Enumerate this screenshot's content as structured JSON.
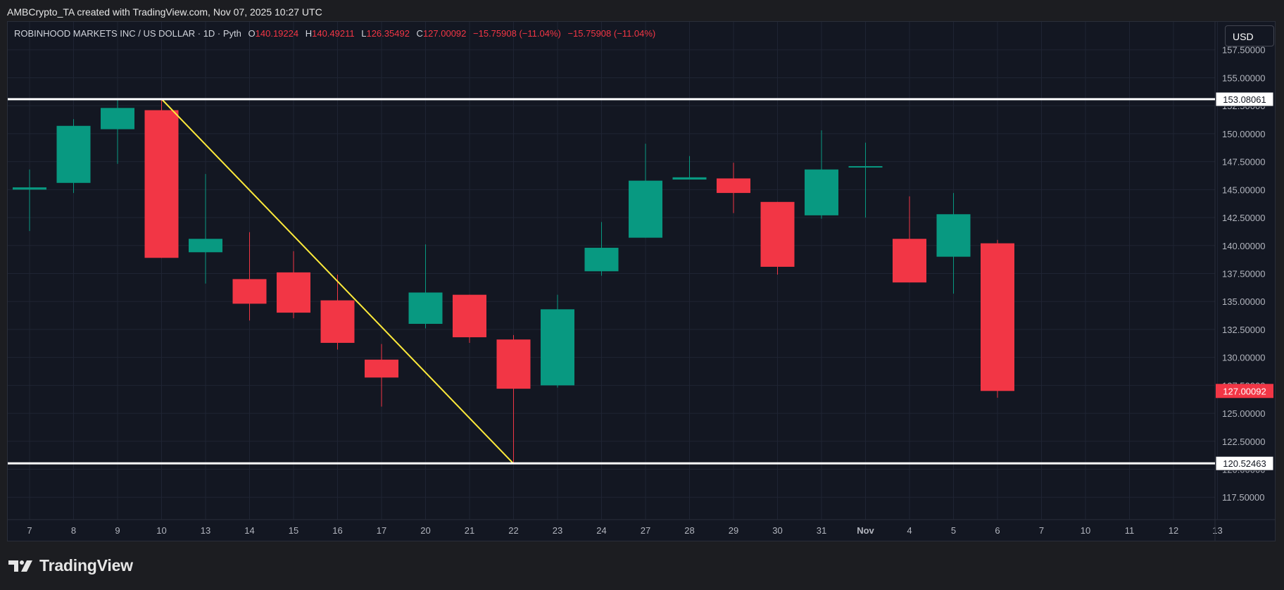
{
  "header": {
    "created_by": "AMBCrypto_TA created with TradingView.com, Nov 07, 2025 10:27 UTC"
  },
  "legend": {
    "symbol": "ROBINHOOD MARKETS INC / US DOLLAR · 1D · Pyth",
    "o_label": "O",
    "o_value": "140.19224",
    "h_label": "H",
    "h_value": "140.49211",
    "l_label": "L",
    "l_value": "126.35492",
    "c_label": "C",
    "c_value": "127.00092",
    "change": "−15.75908 (−11.04%)",
    "change2": "−15.75908 (−11.04%)"
  },
  "currency_button": "USD",
  "brand": {
    "name": "TradingView"
  },
  "colors": {
    "up": "#089981",
    "down": "#f23645",
    "trendline": "#ffeb3b",
    "level": "#ffffff",
    "bg": "#131722",
    "grid": "#1f2433"
  },
  "chart_data": {
    "type": "candlestick",
    "ylim": [
      115.5,
      160.0
    ],
    "y_ticks": [
      "157.50000",
      "155.00000",
      "152.50000",
      "150.00000",
      "147.50000",
      "145.00000",
      "142.50000",
      "140.00000",
      "137.50000",
      "135.00000",
      "132.50000",
      "130.00000",
      "127.50000",
      "125.00000",
      "122.50000",
      "120.00000",
      "117.50000"
    ],
    "x_labels": [
      "7",
      "8",
      "9",
      "10",
      "13",
      "14",
      "15",
      "16",
      "17",
      "20",
      "21",
      "22",
      "23",
      "24",
      "27",
      "28",
      "29",
      "30",
      "31",
      "Nov",
      "4",
      "5",
      "6",
      "7",
      "10",
      "11",
      "12",
      "13"
    ],
    "candles": [
      {
        "x": "7",
        "o": 145.0,
        "h": 146.8,
        "l": 141.3,
        "c": 145.2
      },
      {
        "x": "8",
        "o": 145.6,
        "h": 151.3,
        "l": 144.7,
        "c": 150.7
      },
      {
        "x": "9",
        "o": 150.4,
        "h": 153.0,
        "l": 147.3,
        "c": 152.3
      },
      {
        "x": "10",
        "o": 152.1,
        "h": 153.1,
        "l": 138.9,
        "c": 138.9
      },
      {
        "x": "13",
        "o": 139.4,
        "h": 146.4,
        "l": 136.6,
        "c": 140.6
      },
      {
        "x": "14",
        "o": 137.0,
        "h": 141.2,
        "l": 133.3,
        "c": 134.8
      },
      {
        "x": "15",
        "o": 137.6,
        "h": 139.5,
        "l": 133.5,
        "c": 134.0
      },
      {
        "x": "16",
        "o": 135.1,
        "h": 137.4,
        "l": 130.7,
        "c": 131.3
      },
      {
        "x": "17",
        "o": 129.8,
        "h": 131.2,
        "l": 125.6,
        "c": 128.2
      },
      {
        "x": "20",
        "o": 133.0,
        "h": 140.1,
        "l": 132.6,
        "c": 135.8
      },
      {
        "x": "21",
        "o": 135.6,
        "h": 135.6,
        "l": 131.3,
        "c": 131.8
      },
      {
        "x": "22",
        "o": 131.6,
        "h": 132.0,
        "l": 120.5,
        "c": 127.2
      },
      {
        "x": "23",
        "o": 127.5,
        "h": 135.6,
        "l": 127.3,
        "c": 134.3
      },
      {
        "x": "24",
        "o": 137.7,
        "h": 142.1,
        "l": 137.3,
        "c": 139.8
      },
      {
        "x": "27",
        "o": 140.7,
        "h": 149.1,
        "l": 140.7,
        "c": 145.8
      },
      {
        "x": "28",
        "o": 145.9,
        "h": 148.0,
        "l": 145.9,
        "c": 146.1
      },
      {
        "x": "29",
        "o": 146.0,
        "h": 147.4,
        "l": 142.9,
        "c": 144.7
      },
      {
        "x": "30",
        "o": 143.9,
        "h": 143.9,
        "l": 137.4,
        "c": 138.1
      },
      {
        "x": "31",
        "o": 142.7,
        "h": 150.3,
        "l": 142.4,
        "c": 146.8
      },
      {
        "x": "Nov",
        "o": 147.0,
        "h": 149.2,
        "l": 142.5,
        "c": 147.1
      },
      {
        "x": "4",
        "o": 140.6,
        "h": 144.4,
        "l": 136.7,
        "c": 136.7
      },
      {
        "x": "5",
        "o": 139.0,
        "h": 144.7,
        "l": 135.7,
        "c": 142.8
      },
      {
        "x": "6",
        "o": 140.2,
        "h": 140.5,
        "l": 126.4,
        "c": 127.0
      }
    ],
    "horizontal_levels": [
      {
        "value": 153.08061,
        "label": "153.08061"
      },
      {
        "value": 120.52463,
        "label": "120.52463"
      }
    ],
    "last_price": {
      "value": 127.00092,
      "label": "127.00092"
    },
    "trendline": {
      "from": {
        "x": "10",
        "y": 153.1
      },
      "to": {
        "x": "22",
        "y": 120.5
      }
    }
  }
}
